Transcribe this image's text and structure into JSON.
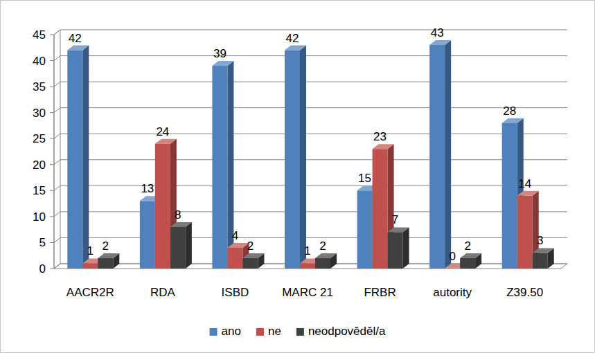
{
  "chart_data": {
    "type": "bar",
    "categories": [
      "AACR2R",
      "RDA",
      "ISBD",
      "MARC 21",
      "FRBR",
      "autority",
      "Z39.50"
    ],
    "series": [
      {
        "name": "ano",
        "color": "#4f81bd",
        "values": [
          42,
          13,
          39,
          42,
          15,
          43,
          28
        ]
      },
      {
        "name": "ne",
        "color": "#c0504d",
        "values": [
          1,
          24,
          4,
          1,
          23,
          0,
          14
        ]
      },
      {
        "name": "neodpověděl/a",
        "color": "#404040",
        "values": [
          2,
          8,
          2,
          2,
          7,
          2,
          3
        ]
      }
    ],
    "ylim": [
      0,
      45
    ],
    "yticks": [
      0,
      5,
      10,
      15,
      20,
      25,
      30,
      35,
      40,
      45
    ],
    "grid": true,
    "data_labels": true,
    "legend": "bottom"
  }
}
